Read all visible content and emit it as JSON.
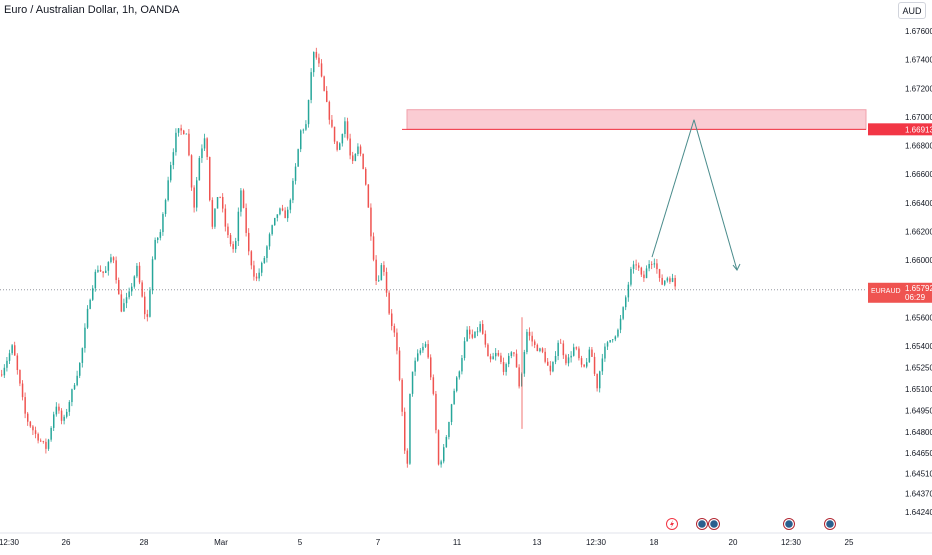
{
  "header": {
    "title": "Euro / Australian Dollar, 1h, OANDA",
    "currency_button": "AUD"
  },
  "colors": {
    "up": "#26a69a",
    "down": "#ef5350",
    "zone_fill": "#f8bbc4",
    "zone_line": "#f23645",
    "arrow": "#4a8c8c",
    "price_line": "#9598a1",
    "axis_text": "#131722",
    "event_icon": "#2a5f8e",
    "flash_icon": "#f23645"
  },
  "chart_data": {
    "type": "candlestick",
    "symbol": "EURAUD",
    "current_price": "1.65792",
    "countdown": "06:29",
    "zone_price_label": "1.66913",
    "y_ticks": [
      "1.67600",
      "1.67400",
      "1.67200",
      "1.67000",
      "1.66800",
      "1.66600",
      "1.66400",
      "1.66200",
      "1.66000",
      "1.65800",
      "1.65600",
      "1.65400",
      "1.65250",
      "1.65100",
      "1.64950",
      "1.64800",
      "1.64650",
      "1.64510",
      "1.64370",
      "1.64240"
    ],
    "x_ticks": [
      "12:30",
      "26",
      "28",
      "Mar",
      "5",
      "7",
      "11",
      "13",
      "12:30",
      "18",
      "20",
      "12:30",
      "25"
    ],
    "resistance_zone": {
      "from": 1.66913,
      "to": 1.6705
    },
    "projection": [
      [
        1.6602,
        1.6698
      ],
      [
        1.6698,
        1.6593
      ]
    ],
    "events": [
      "flash-event",
      "calendar-event",
      "calendar-event",
      "calendar-event",
      "calendar-event"
    ],
    "waypoints": [
      [
        0,
        1.652
      ],
      [
        12,
        1.654
      ],
      [
        25,
        1.649
      ],
      [
        35,
        1.6478
      ],
      [
        46,
        1.6468
      ],
      [
        55,
        1.65
      ],
      [
        62,
        1.6485
      ],
      [
        72,
        1.651
      ],
      [
        80,
        1.653
      ],
      [
        88,
        1.657
      ],
      [
        96,
        1.6595
      ],
      [
        104,
        1.659
      ],
      [
        112,
        1.6605
      ],
      [
        120,
        1.6565
      ],
      [
        128,
        1.6575
      ],
      [
        136,
        1.6595
      ],
      [
        146,
        1.6555
      ],
      [
        153,
        1.661
      ],
      [
        160,
        1.662
      ],
      [
        168,
        1.666
      ],
      [
        176,
        1.669
      ],
      [
        186,
        1.669
      ],
      [
        193,
        1.6635
      ],
      [
        198,
        1.667
      ],
      [
        205,
        1.669
      ],
      [
        211,
        1.662
      ],
      [
        218,
        1.665
      ],
      [
        226,
        1.6618
      ],
      [
        234,
        1.6605
      ],
      [
        240,
        1.665
      ],
      [
        248,
        1.6605
      ],
      [
        255,
        1.6585
      ],
      [
        263,
        1.66
      ],
      [
        270,
        1.662
      ],
      [
        278,
        1.6635
      ],
      [
        286,
        1.663
      ],
      [
        294,
        1.666
      ],
      [
        300,
        1.669
      ],
      [
        306,
        1.6695
      ],
      [
        312,
        1.6745
      ],
      [
        317,
        1.674
      ],
      [
        324,
        1.6715
      ],
      [
        331,
        1.6692
      ],
      [
        337,
        1.6675
      ],
      [
        344,
        1.6698
      ],
      [
        351,
        1.6665
      ],
      [
        358,
        1.668
      ],
      [
        364,
        1.666
      ],
      [
        370,
        1.662
      ],
      [
        376,
        1.6582
      ],
      [
        382,
        1.66
      ],
      [
        389,
        1.656
      ],
      [
        395,
        1.6545
      ],
      [
        403,
        1.648
      ],
      [
        406,
        1.6445
      ],
      [
        410,
        1.652
      ],
      [
        418,
        1.6535
      ],
      [
        425,
        1.6542
      ],
      [
        432,
        1.651
      ],
      [
        438,
        1.6455
      ],
      [
        444,
        1.647
      ],
      [
        452,
        1.6505
      ],
      [
        459,
        1.6525
      ],
      [
        466,
        1.655
      ],
      [
        472,
        1.6545
      ],
      [
        480,
        1.6555
      ],
      [
        488,
        1.6528
      ],
      [
        496,
        1.6535
      ],
      [
        504,
        1.6522
      ],
      [
        512,
        1.654
      ],
      [
        519,
        1.651
      ],
      [
        526,
        1.655
      ],
      [
        534,
        1.654
      ],
      [
        542,
        1.6535
      ],
      [
        550,
        1.652
      ],
      [
        558,
        1.6545
      ],
      [
        566,
        1.6528
      ],
      [
        574,
        1.654
      ],
      [
        582,
        1.6522
      ],
      [
        590,
        1.6538
      ],
      [
        596,
        1.651
      ],
      [
        602,
        1.6535
      ],
      [
        610,
        1.6545
      ],
      [
        617,
        1.655
      ],
      [
        624,
        1.657
      ],
      [
        630,
        1.6592
      ],
      [
        636,
        1.6598
      ],
      [
        642,
        1.6585
      ],
      [
        648,
        1.6598
      ],
      [
        654,
        1.66
      ],
      [
        660,
        1.6582
      ],
      [
        666,
        1.6588
      ],
      [
        672,
        1.6586
      ],
      [
        676,
        1.6579
      ]
    ]
  }
}
